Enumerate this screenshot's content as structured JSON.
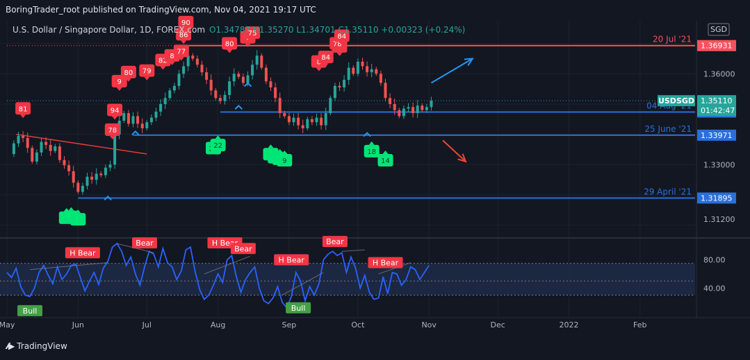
{
  "header": {
    "published": "BoringTrader_root published on TradingView.com, Nov 04, 2021 19:17 UTC"
  },
  "footer": {
    "brand": "TradingView"
  },
  "colors": {
    "up": "#26a69a",
    "down": "#ef5350",
    "blue_line": "#2a6fdb",
    "level_red": "#f7525f",
    "arrow_blue": "#2196f3",
    "arrow_red": "#f44336",
    "signal_red": "#f23645",
    "signal_green": "#22ab94"
  },
  "chart_data": [
    {
      "type": "candlestick",
      "symbol_label": "U.S. Dollar / Singapore Dollar, 1D, FOREX.com",
      "ohlc_label": {
        "O": "1.34787",
        "H": "1.35270",
        "L": "1.34701",
        "C": "1.35110",
        "change": "+0.00323 (+0.24%)"
      },
      "currency": "SGD",
      "ylim": [
        1.306,
        1.3775
      ],
      "y_ticks": [
        "1.36000",
        "1.33000",
        "1.31200"
      ],
      "x_ticks": [
        {
          "label": "May",
          "day": 0
        },
        {
          "label": "Jun",
          "day": 31
        },
        {
          "label": "Jul",
          "day": 61
        },
        {
          "label": "Aug",
          "day": 92
        },
        {
          "label": "Sep",
          "day": 123
        },
        {
          "label": "Oct",
          "day": 153
        },
        {
          "label": "Nov",
          "day": 184
        },
        {
          "label": "Dec",
          "day": 214
        },
        {
          "label": "2022",
          "day": 245
        },
        {
          "label": "Feb",
          "day": 276
        }
      ],
      "x_domain": [
        0,
        300
      ],
      "price_series": [
        [
          0,
          1.3335
        ],
        [
          3,
          1.337
        ],
        [
          5,
          1.3395
        ],
        [
          7,
          1.3388
        ],
        [
          9,
          1.3355
        ],
        [
          11,
          1.331
        ],
        [
          13,
          1.334
        ],
        [
          15,
          1.3375
        ],
        [
          17,
          1.3365
        ],
        [
          19,
          1.3345
        ],
        [
          21,
          1.336
        ],
        [
          23,
          1.3315
        ],
        [
          25,
          1.3298
        ],
        [
          27,
          1.3278
        ],
        [
          29,
          1.324
        ],
        [
          31,
          1.321
        ],
        [
          33,
          1.323
        ],
        [
          35,
          1.326
        ],
        [
          37,
          1.325
        ],
        [
          39,
          1.327
        ],
        [
          41,
          1.3265
        ],
        [
          43,
          1.329
        ],
        [
          45,
          1.33
        ],
        [
          47,
          1.34
        ],
        [
          49,
          1.3445
        ],
        [
          51,
          1.347
        ],
        [
          53,
          1.3435
        ],
        [
          55,
          1.346
        ],
        [
          57,
          1.3435
        ],
        [
          59,
          1.342
        ],
        [
          61,
          1.344
        ],
        [
          63,
          1.3455
        ],
        [
          65,
          1.3475
        ],
        [
          67,
          1.35
        ],
        [
          69,
          1.352
        ],
        [
          71,
          1.3545
        ],
        [
          73,
          1.356
        ],
        [
          75,
          1.36
        ],
        [
          77,
          1.3625
        ],
        [
          79,
          1.366
        ],
        [
          81,
          1.365
        ],
        [
          83,
          1.363
        ],
        [
          85,
          1.3605
        ],
        [
          87,
          1.358
        ],
        [
          89,
          1.3545
        ],
        [
          91,
          1.352
        ],
        [
          93,
          1.351
        ],
        [
          95,
          1.353
        ],
        [
          97,
          1.3575
        ],
        [
          99,
          1.36
        ],
        [
          101,
          1.359
        ],
        [
          103,
          1.357
        ],
        [
          105,
          1.3595
        ],
        [
          107,
          1.363
        ],
        [
          109,
          1.366
        ],
        [
          111,
          1.362
        ],
        [
          113,
          1.3575
        ],
        [
          115,
          1.3555
        ],
        [
          117,
          1.352
        ],
        [
          119,
          1.347
        ],
        [
          121,
          1.346
        ],
        [
          123,
          1.344
        ],
        [
          125,
          1.3455
        ],
        [
          127,
          1.343
        ],
        [
          129,
          1.342
        ],
        [
          131,
          1.345
        ],
        [
          133,
          1.344
        ],
        [
          135,
          1.3455
        ],
        [
          137,
          1.343
        ],
        [
          139,
          1.347
        ],
        [
          141,
          1.352
        ],
        [
          143,
          1.356
        ],
        [
          145,
          1.3555
        ],
        [
          147,
          1.358
        ],
        [
          149,
          1.362
        ],
        [
          151,
          1.36
        ],
        [
          153,
          1.364
        ],
        [
          155,
          1.3625
        ],
        [
          157,
          1.3605
        ],
        [
          159,
          1.3615
        ],
        [
          161,
          1.36
        ],
        [
          163,
          1.357
        ],
        [
          165,
          1.352
        ],
        [
          167,
          1.35
        ],
        [
          169,
          1.348
        ],
        [
          171,
          1.346
        ],
        [
          173,
          1.3485
        ],
        [
          175,
          1.349
        ],
        [
          177,
          1.347
        ],
        [
          179,
          1.3495
        ],
        [
          181,
          1.348
        ],
        [
          183,
          1.349
        ],
        [
          185,
          1.3511
        ]
      ],
      "horizontal_levels": [
        {
          "label": "20 Jul '21",
          "value": "1.36931",
          "price": 1.36931,
          "color": "#f7525f",
          "start_day": 77
        },
        {
          "label": "04 Aug '21",
          "value": "1.34737",
          "price": 1.34737,
          "color": "#2a6fdb",
          "start_day": 93
        },
        {
          "label": "25 June '21",
          "value": "1.33971",
          "price": 1.33971,
          "color": "#2a6fdb",
          "start_day": 55
        },
        {
          "label": "29 April '21",
          "value": "1.31895",
          "price": 1.31895,
          "color": "#2a6fdb",
          "start_day": 31
        }
      ],
      "current_price": {
        "symbol": "USDSGD",
        "value": "1.35110",
        "countdown": "01:42:47",
        "price": 1.3511
      },
      "trendline": {
        "from": [
          4,
          1.34
        ],
        "to": [
          61,
          1.3335
        ]
      },
      "arrows": [
        {
          "direction": "up",
          "from": [
            185,
            1.357
          ],
          "to": [
            203,
            1.365
          ],
          "color": "#2196f3"
        },
        {
          "direction": "down",
          "from": [
            190,
            1.338
          ],
          "to": [
            200,
            1.331
          ],
          "color": "#f44336"
        }
      ],
      "caret_marks": [
        [
          44,
          1.319
        ],
        [
          56,
          1.3405
        ],
        [
          101,
          1.349
        ],
        [
          105,
          1.3565
        ],
        [
          157,
          1.34
        ]
      ],
      "sell_labels": [
        {
          "text": "81",
          "day": 7,
          "price": 1.3465
        },
        {
          "text": "78",
          "day": 46,
          "price": 1.3395
        },
        {
          "text": "94",
          "day": 47,
          "price": 1.346
        },
        {
          "text": "9",
          "day": 49,
          "price": 1.3555
        },
        {
          "text": "80",
          "day": 53,
          "price": 1.3585
        },
        {
          "text": "79",
          "day": 61,
          "price": 1.359
        },
        {
          "text": "82",
          "day": 68,
          "price": 1.3625
        },
        {
          "text": "8",
          "day": 72,
          "price": 1.364
        },
        {
          "text": "77",
          "day": 76,
          "price": 1.3655
        },
        {
          "text": "86",
          "day": 77,
          "price": 1.371
        },
        {
          "text": "90",
          "day": 78,
          "price": 1.375
        },
        {
          "text": "80",
          "day": 97,
          "price": 1.368
        },
        {
          "text": "7",
          "day": 105,
          "price": 1.37
        },
        {
          "text": "75",
          "day": 107,
          "price": 1.3715
        },
        {
          "text": "8",
          "day": 136,
          "price": 1.362
        },
        {
          "text": "84",
          "day": 139,
          "price": 1.3635
        },
        {
          "text": "7",
          "day": 145,
          "price": 1.367
        },
        {
          "text": "78",
          "day": 144,
          "price": 1.368
        },
        {
          "text": "84",
          "day": 146,
          "price": 1.3705
        }
      ],
      "buy_labels": [
        {
          "text": "",
          "day": 26,
          "price": 1.3145
        },
        {
          "text": "",
          "day": 28,
          "price": 1.3148
        },
        {
          "text": "",
          "day": 31,
          "price": 1.314
        },
        {
          "text": "22",
          "day": 90,
          "price": 1.3375
        },
        {
          "text": "22",
          "day": 92,
          "price": 1.3385
        },
        {
          "text": "",
          "day": 115,
          "price": 1.3355
        },
        {
          "text": "",
          "day": 117,
          "price": 1.3345
        },
        {
          "text": "",
          "day": 119,
          "price": 1.334
        },
        {
          "text": "9",
          "day": 121,
          "price": 1.3335
        },
        {
          "text": "18",
          "day": 159,
          "price": 1.3365
        },
        {
          "text": "14",
          "day": 165,
          "price": 1.3335
        }
      ]
    },
    {
      "type": "line",
      "name": "",
      "ylim": [
        0,
        110
      ],
      "y_ticks": [
        "80.00",
        "40.00"
      ],
      "band": [
        30,
        75
      ],
      "midline": 50,
      "series": [
        [
          0,
          62
        ],
        [
          2,
          55
        ],
        [
          4,
          68
        ],
        [
          6,
          42
        ],
        [
          8,
          30
        ],
        [
          10,
          28
        ],
        [
          12,
          40
        ],
        [
          14,
          62
        ],
        [
          16,
          72
        ],
        [
          18,
          58
        ],
        [
          20,
          46
        ],
        [
          22,
          70
        ],
        [
          24,
          52
        ],
        [
          26,
          60
        ],
        [
          28,
          72
        ],
        [
          30,
          74
        ],
        [
          32,
          55
        ],
        [
          34,
          36
        ],
        [
          36,
          50
        ],
        [
          38,
          62
        ],
        [
          40,
          45
        ],
        [
          42,
          68
        ],
        [
          44,
          78
        ],
        [
          46,
          98
        ],
        [
          48,
          103
        ],
        [
          50,
          92
        ],
        [
          52,
          72
        ],
        [
          54,
          84
        ],
        [
          56,
          60
        ],
        [
          58,
          44
        ],
        [
          60,
          70
        ],
        [
          62,
          92
        ],
        [
          64,
          88
        ],
        [
          66,
          70
        ],
        [
          68,
          96
        ],
        [
          70,
          76
        ],
        [
          72,
          70
        ],
        [
          74,
          52
        ],
        [
          76,
          64
        ],
        [
          78,
          94
        ],
        [
          80,
          98
        ],
        [
          82,
          64
        ],
        [
          84,
          38
        ],
        [
          86,
          24
        ],
        [
          88,
          30
        ],
        [
          90,
          44
        ],
        [
          92,
          60
        ],
        [
          94,
          48
        ],
        [
          96,
          80
        ],
        [
          98,
          86
        ],
        [
          100,
          56
        ],
        [
          102,
          34
        ],
        [
          104,
          52
        ],
        [
          106,
          62
        ],
        [
          108,
          70
        ],
        [
          110,
          40
        ],
        [
          112,
          22
        ],
        [
          114,
          18
        ],
        [
          116,
          26
        ],
        [
          118,
          42
        ],
        [
          120,
          20
        ],
        [
          122,
          12
        ],
        [
          124,
          28
        ],
        [
          126,
          62
        ],
        [
          128,
          50
        ],
        [
          130,
          22
        ],
        [
          132,
          42
        ],
        [
          134,
          30
        ],
        [
          136,
          46
        ],
        [
          138,
          80
        ],
        [
          140,
          88
        ],
        [
          142,
          92
        ],
        [
          144,
          86
        ],
        [
          146,
          90
        ],
        [
          148,
          62
        ],
        [
          150,
          84
        ],
        [
          152,
          68
        ],
        [
          154,
          40
        ],
        [
          156,
          58
        ],
        [
          158,
          34
        ],
        [
          160,
          24
        ],
        [
          162,
          26
        ],
        [
          164,
          56
        ],
        [
          166,
          32
        ],
        [
          168,
          62
        ],
        [
          170,
          60
        ],
        [
          172,
          44
        ],
        [
          174,
          52
        ],
        [
          176,
          70
        ],
        [
          178,
          66
        ],
        [
          180,
          52
        ],
        [
          182,
          62
        ],
        [
          184,
          72
        ]
      ],
      "divergence_lines": [
        [
          [
            10,
            66
          ],
          [
            44,
            76
          ]
        ],
        [
          [
            48,
            103
          ],
          [
            64,
            90
          ]
        ],
        [
          [
            86,
            60
          ],
          [
            106,
            85
          ]
        ],
        [
          [
            120,
            30
          ],
          [
            138,
            62
          ]
        ],
        [
          [
            146,
            92
          ],
          [
            156,
            94
          ]
        ],
        [
          [
            162,
            60
          ],
          [
            176,
            76
          ]
        ]
      ],
      "signals": [
        {
          "text": "H Bear",
          "kind": "bear",
          "day": 33,
          "value": 90
        },
        {
          "text": "Bear",
          "kind": "bear",
          "day": 60,
          "value": 104
        },
        {
          "text": "H Bear",
          "kind": "bear",
          "day": 95,
          "value": 104
        },
        {
          "text": "Bear",
          "kind": "bear",
          "day": 103,
          "value": 96
        },
        {
          "text": "H Bear",
          "kind": "bear",
          "day": 124,
          "value": 80
        },
        {
          "text": "Bear",
          "kind": "bear",
          "day": 143,
          "value": 106
        },
        {
          "text": "H Bear",
          "kind": "bear",
          "day": 165,
          "value": 76
        },
        {
          "text": "Bull",
          "kind": "bull",
          "day": 10,
          "value": 8
        },
        {
          "text": "Bull",
          "kind": "bull",
          "day": 127,
          "value": 12
        }
      ]
    }
  ]
}
